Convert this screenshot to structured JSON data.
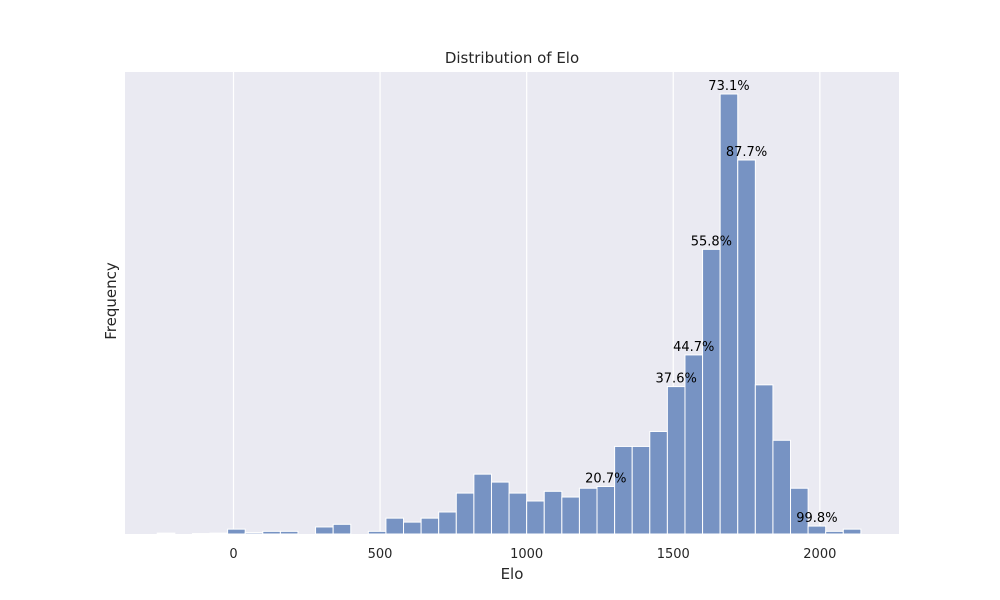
{
  "chart_data": {
    "type": "bar",
    "title": "Distribution of Elo",
    "xlabel": "Elo",
    "ylabel": "Frequency",
    "xlim": [
      -370,
      2270
    ],
    "ylim": [
      0,
      1.05
    ],
    "x_ticks": [
      0,
      500,
      1000,
      1500,
      2000
    ],
    "x_tick_labels": [
      "0",
      "500",
      "1000",
      "1500",
      "2000"
    ],
    "y_tick_labels": [],
    "grid": true,
    "bin_width": 60,
    "bins": [
      {
        "start": -260,
        "end": -200,
        "value": 0.002
      },
      {
        "start": -200,
        "end": -140,
        "value": 0.0
      },
      {
        "start": -140,
        "end": -80,
        "value": 0.001
      },
      {
        "start": -80,
        "end": -20,
        "value": 0.002
      },
      {
        "start": -20,
        "end": 40,
        "value": 0.011
      },
      {
        "start": 40,
        "end": 100,
        "value": 0.003
      },
      {
        "start": 100,
        "end": 160,
        "value": 0.006
      },
      {
        "start": 160,
        "end": 220,
        "value": 0.006
      },
      {
        "start": 220,
        "end": 280,
        "value": 0.0
      },
      {
        "start": 280,
        "end": 340,
        "value": 0.016
      },
      {
        "start": 340,
        "end": 400,
        "value": 0.022
      },
      {
        "start": 400,
        "end": 460,
        "value": 0.0
      },
      {
        "start": 460,
        "end": 520,
        "value": 0.006
      },
      {
        "start": 520,
        "end": 580,
        "value": 0.036
      },
      {
        "start": 580,
        "end": 640,
        "value": 0.027
      },
      {
        "start": 640,
        "end": 700,
        "value": 0.036
      },
      {
        "start": 700,
        "end": 760,
        "value": 0.05
      },
      {
        "start": 760,
        "end": 820,
        "value": 0.093
      },
      {
        "start": 820,
        "end": 880,
        "value": 0.136
      },
      {
        "start": 880,
        "end": 940,
        "value": 0.118
      },
      {
        "start": 940,
        "end": 1000,
        "value": 0.093
      },
      {
        "start": 1000,
        "end": 1060,
        "value": 0.075
      },
      {
        "start": 1060,
        "end": 1120,
        "value": 0.097
      },
      {
        "start": 1120,
        "end": 1180,
        "value": 0.084
      },
      {
        "start": 1180,
        "end": 1240,
        "value": 0.104
      },
      {
        "start": 1240,
        "end": 1300,
        "value": 0.108
      },
      {
        "start": 1300,
        "end": 1360,
        "value": 0.199
      },
      {
        "start": 1360,
        "end": 1420,
        "value": 0.199
      },
      {
        "start": 1420,
        "end": 1480,
        "value": 0.233
      },
      {
        "start": 1480,
        "end": 1540,
        "value": 0.335
      },
      {
        "start": 1540,
        "end": 1600,
        "value": 0.407
      },
      {
        "start": 1600,
        "end": 1660,
        "value": 0.647
      },
      {
        "start": 1660,
        "end": 1720,
        "value": 1.0
      },
      {
        "start": 1720,
        "end": 1780,
        "value": 0.85
      },
      {
        "start": 1780,
        "end": 1840,
        "value": 0.339
      },
      {
        "start": 1840,
        "end": 1900,
        "value": 0.213
      },
      {
        "start": 1900,
        "end": 1960,
        "value": 0.104
      },
      {
        "start": 1960,
        "end": 2020,
        "value": 0.018
      },
      {
        "start": 2020,
        "end": 2080,
        "value": 0.006
      },
      {
        "start": 2080,
        "end": 2140,
        "value": 0.011
      }
    ],
    "annotations": [
      {
        "text": "20.7%",
        "bin": 25
      },
      {
        "text": "37.6%",
        "bin": 29
      },
      {
        "text": "44.7%",
        "bin": 30
      },
      {
        "text": "55.8%",
        "bin": 31
      },
      {
        "text": "73.1%",
        "bin": 32
      },
      {
        "text": "87.7%",
        "bin": 33
      },
      {
        "text": "99.8%",
        "bin": 37
      }
    ],
    "colors": {
      "bar": "#7793c3",
      "bar_edge": "#ffffff",
      "plot_background": "#eaeaf2",
      "grid": "#ffffff"
    }
  }
}
